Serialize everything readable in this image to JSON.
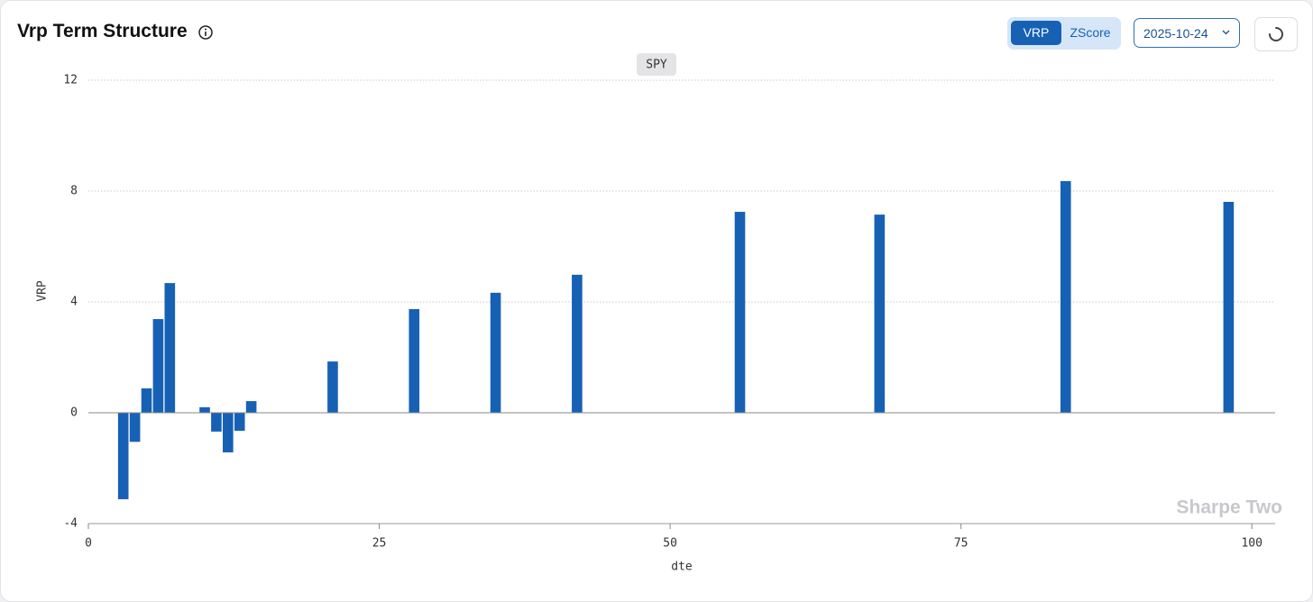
{
  "header": {
    "title": "Vrp Term Structure",
    "toggle": [
      "VRP",
      "ZScore"
    ],
    "active_toggle": "VRP",
    "date": "2025-10-24"
  },
  "chart_data": {
    "type": "bar",
    "subtitle": "SPY",
    "watermark": "Sharpe Two",
    "x_label": "dte",
    "y_label": "VRP",
    "x": [
      3,
      4,
      5,
      6,
      7,
      10,
      11,
      12,
      13,
      14,
      21,
      28,
      35,
      42,
      56,
      68,
      84,
      98
    ],
    "values": [
      -3.12,
      -1.05,
      0.88,
      3.38,
      4.68,
      0.2,
      -0.68,
      -1.43,
      -0.65,
      0.42,
      1.85,
      3.74,
      4.33,
      4.98,
      7.25,
      7.15,
      8.36,
      7.61
    ],
    "color": "#1761b5",
    "xlim": [
      0,
      102
    ],
    "xticks": [
      0,
      25,
      50,
      75,
      100
    ],
    "ylim": [
      -4,
      12
    ],
    "yticks": [
      -4,
      0,
      4,
      8,
      12
    ],
    "grid": true
  }
}
